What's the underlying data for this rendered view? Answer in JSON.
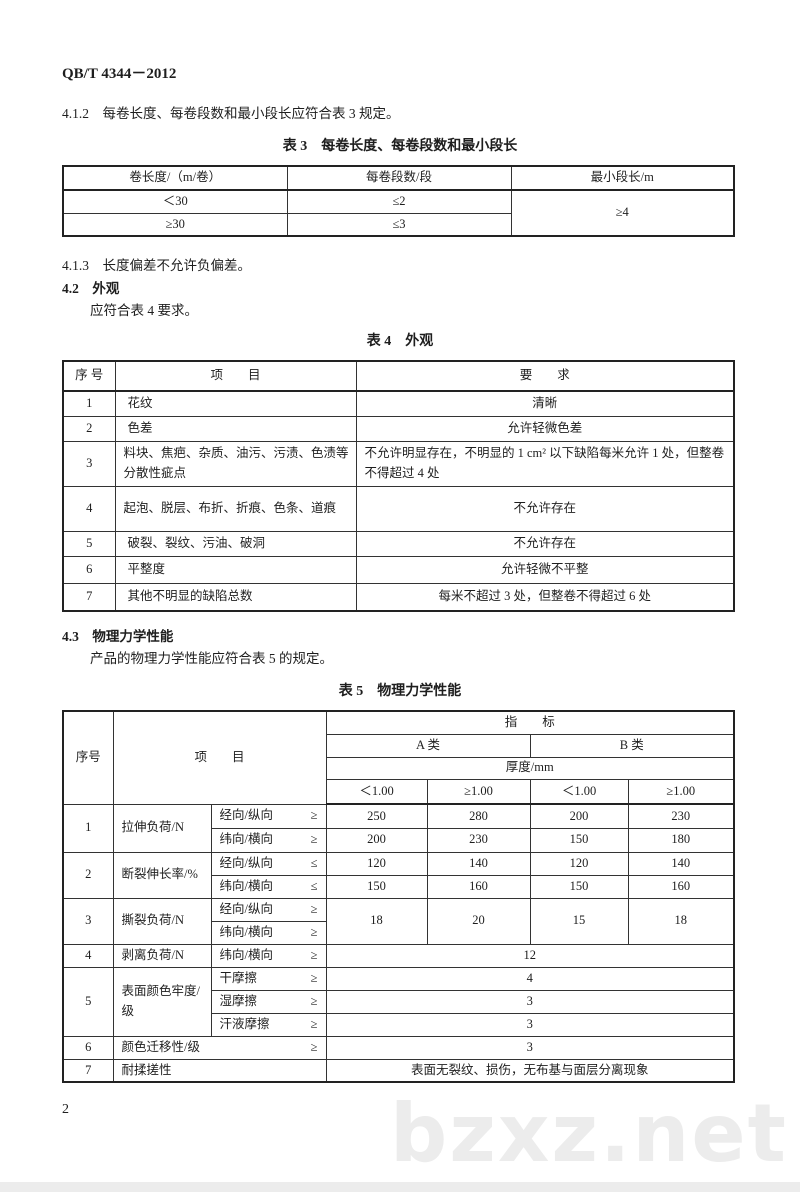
{
  "header": {
    "standard_no": "QB/T 4344－2012"
  },
  "section_4_1_2": {
    "text": "4.1.2　每卷长度、每卷段数和最小段长应符合表 3 规定。"
  },
  "table3": {
    "title": "表 3　每卷长度、每卷段数和最小段长",
    "headers": [
      "卷长度/（m/卷）",
      "每卷段数/段",
      "最小段长/m"
    ],
    "rows": [
      {
        "length": "＜30",
        "segments": "≤2"
      },
      {
        "length": "≥30",
        "segments": "≤3"
      }
    ],
    "min_segment": "≥4"
  },
  "section_4_1_3": {
    "text": "4.1.3　长度偏差不允许负偏差。"
  },
  "section_4_2": {
    "heading": "4.2　外观",
    "text": "应符合表 4 要求。"
  },
  "table4": {
    "title": "表 4　外观",
    "headers": [
      "序 号",
      "项　　目",
      "要　　求"
    ],
    "rows": [
      {
        "no": "1",
        "item": "花纹",
        "req": "清晰"
      },
      {
        "no": "2",
        "item": "色差",
        "req": "允许轻微色差"
      },
      {
        "no": "3",
        "item": "料块、焦疤、杂质、油污、污渍、色渍等分散性疵点",
        "req": "不允许明显存在，不明显的 1 cm² 以下缺陷每米允许 1 处，但整卷不得超过 4 处"
      },
      {
        "no": "4",
        "item": "起泡、脱层、布折、折痕、色条、道痕",
        "req": "不允许存在"
      },
      {
        "no": "5",
        "item": "破裂、裂纹、污油、破洞",
        "req": "不允许存在"
      },
      {
        "no": "6",
        "item": "平整度",
        "req": "允许轻微不平整"
      },
      {
        "no": "7",
        "item": "其他不明显的缺陷总数",
        "req": "每米不超过 3 处，但整卷不得超过 6 处"
      }
    ]
  },
  "section_4_3": {
    "heading": "4.3　物理力学性能",
    "text": "产品的物理力学性能应符合表 5 的规定。"
  },
  "table5": {
    "title": "表 5　物理力学性能",
    "headers": {
      "no": "序号",
      "item": "项　　目",
      "index": "指　　标",
      "class_a": "A 类",
      "class_b": "B 类",
      "thickness": "厚度/mm",
      "lt": "＜1.00",
      "ge": "≥1.00"
    },
    "rows": {
      "r1": {
        "no": "1",
        "item": "拉伸负荷/N",
        "sub": [
          {
            "dir": "经向/纵向",
            "op": "≥",
            "vals": [
              "250",
              "280",
              "200",
              "230"
            ]
          },
          {
            "dir": "纬向/横向",
            "op": "≥",
            "vals": [
              "200",
              "230",
              "150",
              "180"
            ]
          }
        ]
      },
      "r2": {
        "no": "2",
        "item": "断裂伸长率/%",
        "sub": [
          {
            "dir": "经向/纵向",
            "op": "≤",
            "vals": [
              "120",
              "140",
              "120",
              "140"
            ]
          },
          {
            "dir": "纬向/横向",
            "op": "≤",
            "vals": [
              "150",
              "160",
              "150",
              "160"
            ]
          }
        ]
      },
      "r3": {
        "no": "3",
        "item": "撕裂负荷/N",
        "sub": [
          {
            "dir": "经向/纵向",
            "op": "≥"
          },
          {
            "dir": "纬向/横向",
            "op": "≥"
          }
        ],
        "vals": [
          "18",
          "20",
          "15",
          "18"
        ]
      },
      "r4": {
        "no": "4",
        "item": "剥离负荷/N",
        "dir": "纬向/横向",
        "op": "≥",
        "val": "12"
      },
      "r5": {
        "no": "5",
        "item": "表面颜色牢度/级",
        "sub": [
          {
            "dir": "干摩擦",
            "op": "≥",
            "val": "4"
          },
          {
            "dir": "湿摩擦",
            "op": "≥",
            "val": "3"
          },
          {
            "dir": "汗液摩擦",
            "op": "≥",
            "val": "3"
          }
        ]
      },
      "r6": {
        "no": "6",
        "item": "颜色迁移性/级",
        "op": "≥",
        "val": "3"
      },
      "r7": {
        "no": "7",
        "item": "耐揉搓性",
        "val": "表面无裂纹、损伤，无布基与面层分离现象"
      }
    }
  },
  "footer": {
    "page_number": "2",
    "watermark": "bzxz.net"
  }
}
